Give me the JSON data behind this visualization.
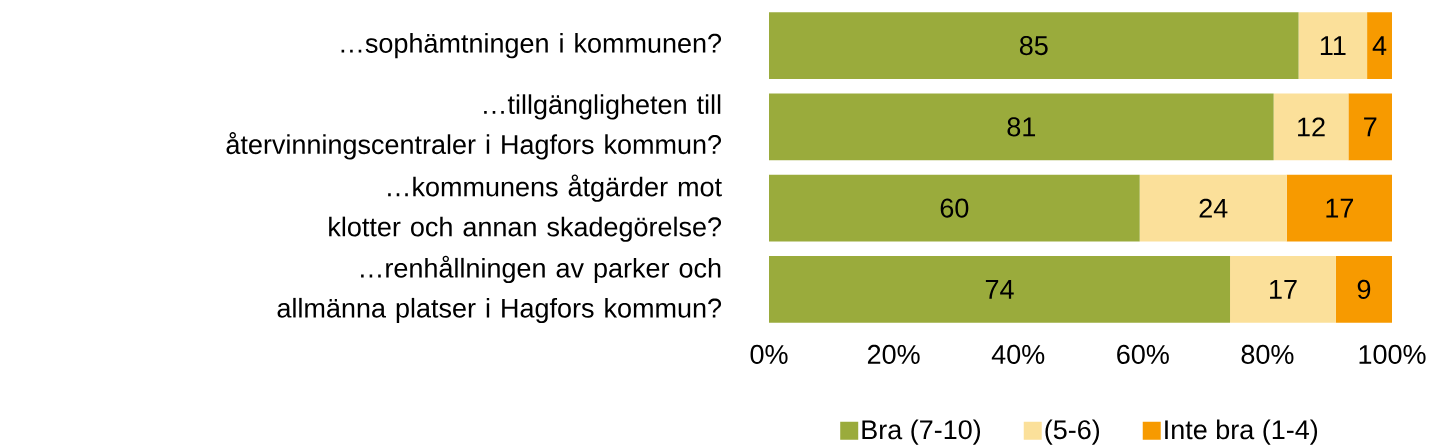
{
  "chart_data": {
    "type": "bar",
    "orientation": "horizontal",
    "stacked": true,
    "categories": [
      "…sophämtningen i kommunen?",
      "…tillgängligheten till återvinningscentraler i Hagfors kommun?",
      "…kommunens åtgärder mot klotter och annan skadegörelse?",
      "…renhållningen av parker och allmänna platser i Hagfors kommun?"
    ],
    "series": [
      {
        "name": "Bra (7-10)",
        "color": "#9aab3c",
        "values": [
          85,
          81,
          59.5,
          74
        ],
        "value_labels": [
          "85",
          "81",
          "60",
          "74"
        ]
      },
      {
        "name": "(5-6)",
        "color": "#fbe09a",
        "values": [
          11,
          12,
          23.6,
          17
        ],
        "value_labels": [
          "11",
          "12",
          "24",
          "17"
        ]
      },
      {
        "name": "Inte bra (1-4)",
        "color": "#f79a00",
        "values": [
          4,
          7,
          16.9,
          9
        ],
        "value_labels": [
          "4",
          "7",
          "17",
          "9"
        ]
      }
    ],
    "xlim": [
      0,
      100
    ],
    "xticks": [
      {
        "value": 0,
        "label": "0%"
      },
      {
        "value": 20,
        "label": "20%"
      },
      {
        "value": 40,
        "label": "40%"
      },
      {
        "value": 60,
        "label": "60%"
      },
      {
        "value": 80,
        "label": "80%"
      },
      {
        "value": 100,
        "label": "100%"
      }
    ],
    "grid": false,
    "legend": "bottom"
  }
}
